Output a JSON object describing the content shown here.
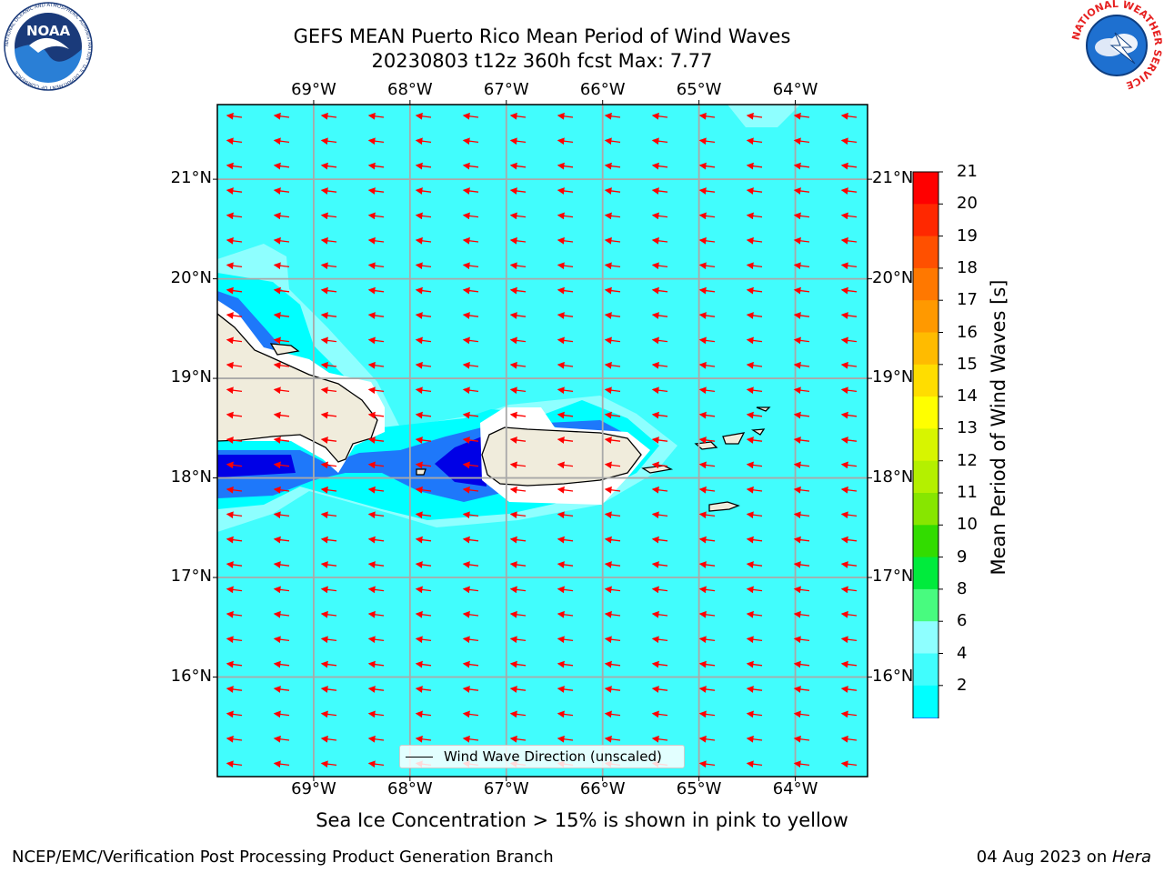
{
  "header": {
    "title_line1": "GEFS MEAN Puerto Rico Mean Period of Wind Waves",
    "title_line2": "20230803 t12z 360h fcst   Max: 7.77"
  },
  "logos": {
    "noaa": "NOAA",
    "noaa_ring": "NATIONAL OCEANIC AND ATMOSPHERIC ADMINISTRATION · U.S. DEPARTMENT OF COMMERCE",
    "nws": "NATIONAL WEATHER SERVICE"
  },
  "map": {
    "lon_labels": [
      "69°W",
      "68°W",
      "67°W",
      "66°W",
      "65°W",
      "64°W"
    ],
    "lat_labels": [
      "21°N",
      "20°N",
      "19°N",
      "18°N",
      "17°N",
      "16°N"
    ],
    "lon_values": [
      -69,
      -68,
      -67,
      -66,
      -65,
      -64
    ],
    "lat_values": [
      21,
      20,
      19,
      18,
      17,
      16
    ],
    "extent": {
      "lon_min": -70.0,
      "lon_max": -63.25,
      "lat_min": 15.0,
      "lat_max": 21.75
    },
    "wave_direction": "toward west-southwest",
    "colors": {
      "ocean_bg": "#41fdfd",
      "light_cyan": "#8effff",
      "cyan": "#00ffff",
      "blue": "#1e78fa",
      "dark_blue": "#0000e6",
      "land": "#f0ecdc",
      "ice_mask": "#ffffff",
      "arrow": "#ff0000"
    }
  },
  "legend": {
    "label": "Wind Wave Direction (unscaled)"
  },
  "colorbar": {
    "label": "Mean Period of Wind Waves [s]",
    "ticks": [
      "21",
      "20",
      "19",
      "18",
      "17",
      "16",
      "15",
      "14",
      "13",
      "12",
      "11",
      "10",
      "9",
      "8",
      "6",
      "4",
      "2"
    ],
    "colors": [
      "#ff0000",
      "#ff2800",
      "#ff5000",
      "#ff7800",
      "#ff9900",
      "#ffbb00",
      "#ffdd00",
      "#ffff00",
      "#d7f500",
      "#b4f000",
      "#87e600",
      "#32dc00",
      "#00eb3c",
      "#48fb7f",
      "#8effff",
      "#41fdfd",
      "#00ffff",
      "#1e78fa",
      "#0000e6"
    ]
  },
  "footer": {
    "note": "Sea Ice Concentration > 15% is shown in pink to yellow",
    "left": "NCEP/EMC/Verification Post Processing Product Generation Branch",
    "right_date": "04 Aug 2023 on ",
    "right_machine": "Hera"
  }
}
